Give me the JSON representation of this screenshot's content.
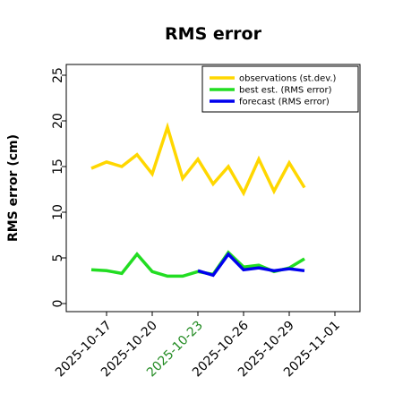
{
  "chart_data": {
    "type": "line",
    "title": "RMS error",
    "xlabel": "",
    "ylabel": "RMS error (cm)",
    "ylim": [
      0,
      26
    ],
    "yticks": [
      "0",
      "5",
      "10",
      "15",
      "20",
      "25"
    ],
    "xticks": [
      {
        "label": "2025-10-17",
        "color": "#000000"
      },
      {
        "label": "2025-10-20",
        "color": "#000000"
      },
      {
        "label": "2025-10-23",
        "color": "#228B22"
      },
      {
        "label": "2025-10-26",
        "color": "#000000"
      },
      {
        "label": "2025-10-29",
        "color": "#000000"
      },
      {
        "label": "2025-11-01",
        "color": "#000000"
      }
    ],
    "grid": false,
    "legend_position": "top-right",
    "x": [
      "2025-10-16",
      "2025-10-17",
      "2025-10-18",
      "2025-10-19",
      "2025-10-20",
      "2025-10-21",
      "2025-10-22",
      "2025-10-23",
      "2025-10-24",
      "2025-10-25",
      "2025-10-26",
      "2025-10-27",
      "2025-10-28",
      "2025-10-29",
      "2025-10-30",
      "2025-10-31"
    ],
    "series": [
      {
        "name": "observations (st.dev.)",
        "color": "#FFD700",
        "x": [
          "2025-10-16",
          "2025-10-17",
          "2025-10-18",
          "2025-10-19",
          "2025-10-20",
          "2025-10-21",
          "2025-10-22",
          "2025-10-23",
          "2025-10-24",
          "2025-10-25",
          "2025-10-26",
          "2025-10-27",
          "2025-10-28",
          "2025-10-29",
          "2025-10-30",
          "2025-10-31"
        ],
        "values": [
          14.8,
          15.5,
          15.0,
          16.3,
          14.2,
          19.3,
          13.7,
          15.8,
          13.1,
          15.0,
          12.1,
          15.8,
          12.3,
          15.4,
          12.7,
          null
        ]
      },
      {
        "name": "best est. (RMS error)",
        "color": "#22DD22",
        "x": [
          "2025-10-16",
          "2025-10-17",
          "2025-10-18",
          "2025-10-19",
          "2025-10-20",
          "2025-10-21",
          "2025-10-22",
          "2025-10-23",
          "2025-10-24",
          "2025-10-25",
          "2025-10-26",
          "2025-10-27",
          "2025-10-28",
          "2025-10-29",
          "2025-10-30",
          "2025-10-31"
        ],
        "values": [
          3.7,
          3.6,
          3.3,
          5.4,
          3.5,
          3.0,
          3.0,
          3.5,
          3.2,
          5.6,
          4.0,
          4.2,
          3.5,
          3.9,
          4.9,
          null
        ]
      },
      {
        "name": "forecast (RMS error)",
        "color": "#0000EE",
        "x": [
          "2025-10-23",
          "2025-10-24",
          "2025-10-25",
          "2025-10-26",
          "2025-10-27",
          "2025-10-28",
          "2025-10-29",
          "2025-10-30"
        ],
        "values": [
          3.6,
          3.1,
          5.4,
          3.7,
          3.9,
          3.6,
          3.8,
          3.6
        ]
      }
    ]
  }
}
